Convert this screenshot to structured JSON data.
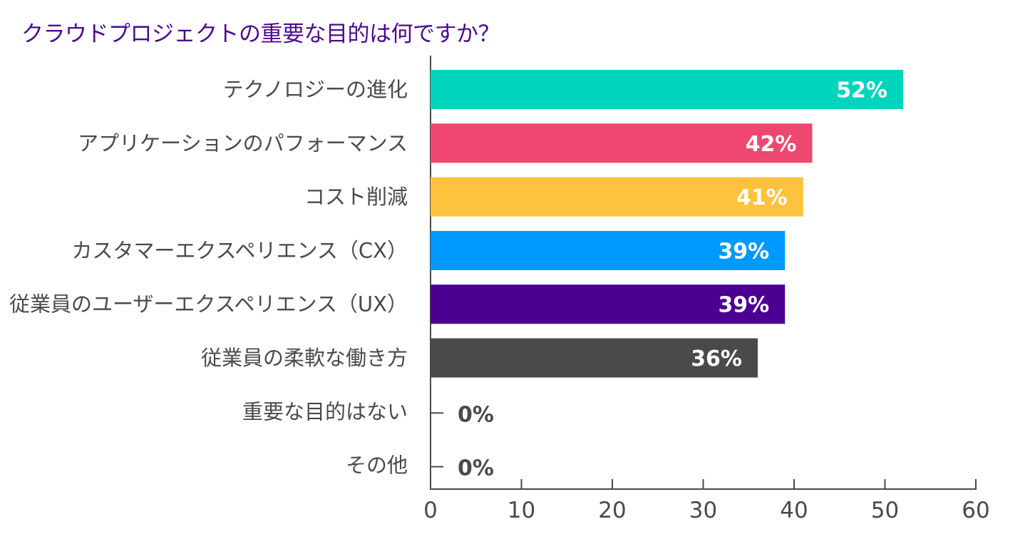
{
  "chart_data": {
    "type": "bar",
    "orientation": "horizontal",
    "title": "クラウドプロジェクトの重要な目的は何ですか？",
    "categories": [
      "テクノロジーの進化",
      "アプリケーションのパフォーマンス",
      "コスト削減",
      "カスタマーエクスペリエンス（CX）",
      "従業員のユーザーエクスペリエンス（UX）",
      "従業員の柔軟な働き方",
      "重要な目的はない",
      "その他"
    ],
    "values": [
      52,
      42,
      41,
      39,
      39,
      36,
      0,
      0
    ],
    "data_labels": [
      "52%",
      "42%",
      "41%",
      "39%",
      "39%",
      "36%",
      "0%",
      "0%"
    ],
    "colors": [
      "#00d4bd",
      "#ef4770",
      "#ffc23e",
      "#0099ff",
      "#4b0092",
      "#4a4a48",
      "#4a4a48",
      "#4a4a48"
    ],
    "xlim": [
      0,
      60
    ],
    "xticks": [
      "0",
      "10",
      "20",
      "30",
      "40",
      "50",
      "60"
    ],
    "grid": false,
    "xlabel": "",
    "ylabel": ""
  }
}
